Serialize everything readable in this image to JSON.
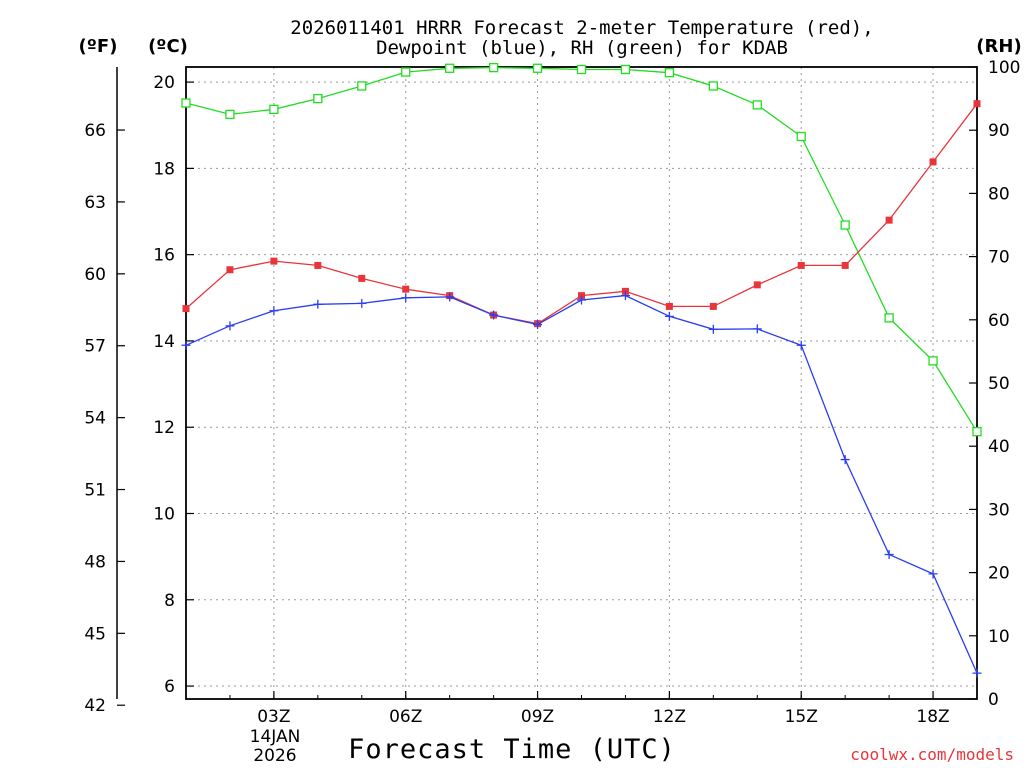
{
  "chart_data": {
    "type": "line",
    "title_line1": "2026011401 HRRR Forecast 2-meter Temperature (red),",
    "title_line2": "Dewpoint (blue), RH (green) for KDAB",
    "unit_f": "(ºF)",
    "unit_c": "(ºC)",
    "unit_rh": "(RH)",
    "xlabel": "Forecast Time (UTC)",
    "date_line1": "14JAN",
    "date_line2": "2026",
    "credit": "coolwx.com/models",
    "x_hours": [
      1,
      2,
      3,
      4,
      5,
      6,
      7,
      8,
      9,
      10,
      11,
      12,
      13,
      14,
      15,
      16,
      17,
      18,
      19
    ],
    "xlim": [
      1,
      19
    ],
    "x_ticks": [
      {
        "hour": 3,
        "label": "03Z"
      },
      {
        "hour": 6,
        "label": "06Z"
      },
      {
        "hour": 9,
        "label": "09Z"
      },
      {
        "hour": 12,
        "label": "12Z"
      },
      {
        "hour": 15,
        "label": "15Z"
      },
      {
        "hour": 18,
        "label": "18Z"
      }
    ],
    "ylim_c": [
      5.7,
      20.35
    ],
    "c_ticks": [
      "6",
      "8",
      "10",
      "12",
      "14",
      "16",
      "18",
      "20"
    ],
    "f_ticks": [
      "42",
      "45",
      "48",
      "51",
      "54",
      "57",
      "60",
      "63",
      "66"
    ],
    "rh_ylim": [
      0,
      100
    ],
    "rh_ticks": [
      "0",
      "10",
      "20",
      "30",
      "40",
      "50",
      "60",
      "70",
      "80",
      "90",
      "100"
    ],
    "series": [
      {
        "name": "Temperature",
        "color": "#e8353a",
        "marker": "filled-square",
        "values": [
          14.75,
          15.65,
          15.85,
          15.75,
          15.45,
          15.2,
          15.05,
          14.6,
          14.4,
          15.05,
          15.15,
          14.8,
          14.8,
          15.3,
          15.75,
          15.75,
          16.8,
          18.15,
          19.5
        ]
      },
      {
        "name": "Dewpoint",
        "color": "#2a3df0",
        "marker": "plus",
        "values": [
          13.9,
          14.35,
          14.7,
          14.85,
          14.87,
          15.0,
          15.02,
          14.6,
          14.38,
          14.95,
          15.05,
          14.57,
          14.27,
          14.28,
          13.9,
          11.25,
          9.05,
          8.6,
          6.3
        ]
      },
      {
        "name": "RH",
        "color": "#22dd22",
        "marker": "open-square",
        "values": [
          94.3,
          92.5,
          93.3,
          95.0,
          97.0,
          99.2,
          99.8,
          99.9,
          99.8,
          99.6,
          99.6,
          99.1,
          97.0,
          94.0,
          89.0,
          75.0,
          60.3,
          53.5,
          42.3
        ]
      }
    ]
  }
}
